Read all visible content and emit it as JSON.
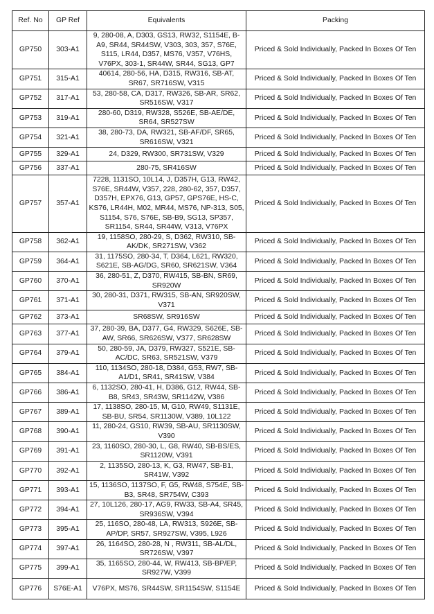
{
  "headers": {
    "ref_no": "Ref. No",
    "gp_ref": "GP Ref",
    "equivalents": "Equivalents",
    "packing": "Packing"
  },
  "rows": [
    {
      "ref": "GP750",
      "gp": "303-A1",
      "eq": "9, 280-08, A, D303, GS13, RW32, S1154E, B-A9, SR44, SR44SW, V303, 303, 357, S76E, S115, LR44, D357, MS76, V357, V76HS, V76PX, 303-1, SR44W, SR44, SG13, GP7",
      "pack": "Priced & Sold Individually, Packed In Boxes Of Ten"
    },
    {
      "ref": "GP751",
      "gp": "315-A1",
      "eq": "40614, 280-56, HA, D315, RW316, SB-AT, SR67, SR716SW, V315",
      "pack": "Priced & Sold Individually, Packed In Boxes Of Ten"
    },
    {
      "ref": "GP752",
      "gp": "317-A1",
      "eq": "53, 280-58, CA, D317, RW326, SB-AR, SR62, SR516SW, V317",
      "pack": "Priced & Sold Individually, Packed In Boxes Of Ten"
    },
    {
      "ref": "GP753",
      "gp": "319-A1",
      "eq": "280-60, D319, RW328, S526E, SB-AE/DE, SR64, SR527SW",
      "pack": "Priced & Sold Individually, Packed In Boxes Of Ten"
    },
    {
      "ref": "GP754",
      "gp": "321-A1",
      "eq": "38, 280-73, DA, RW321, SB-AF/DF, SR65, SR616SW, V321",
      "pack": "Priced & Sold Individually, Packed In Boxes Of Ten"
    },
    {
      "ref": "GP755",
      "gp": "329-A1",
      "eq": "24, D329, RW300, SR731SW, V329",
      "pack": "Priced & Sold Individually, Packed In Boxes Of Ten"
    },
    {
      "ref": "GP756",
      "gp": "337-A1",
      "eq": "280-75, SR416SW",
      "pack": "Priced & Sold Individually, Packed In Boxes Of Ten"
    },
    {
      "ref": "GP757",
      "gp": "357-A1",
      "eq": "7228, 1131SO, 10L14, J, D357H, G13, RW42, S76E, SR44W, V357, 228, 280-62, 357, D357, D357H, EPX76, G13, GP57, GPS76E, HS-C, KS76, LR44H, M02, MR44, MS76, NP-313, S05, S1154, S76, S76E, SB-B9, SG13, SP357, SR1154, SR44, SR44W, V313, V76PX",
      "pack": "Priced & Sold Individually, Packed In Boxes Of Ten"
    },
    {
      "ref": "GP758",
      "gp": "362-A1",
      "eq": "19, 1158SO, 280-29, S, D362, RW310, SB-AK/DK, SR271SW, V362",
      "pack": "Priced & Sold Individually, Packed In Boxes Of Ten"
    },
    {
      "ref": "GP759",
      "gp": "364-A1",
      "eq": "31, 1175SO, 280-34, T, D364, L621, RW320, S621E, SB-AG/DG, SR60, SR621SW, V364",
      "pack": "Priced & Sold Individually, Packed In Boxes Of Ten"
    },
    {
      "ref": "GP760",
      "gp": "370-A1",
      "eq": "36, 280-51, Z, D370, RW415, SB-BN, SR69, SR920W",
      "pack": "Priced & Sold Individually, Packed In Boxes Of Ten"
    },
    {
      "ref": "GP761",
      "gp": "371-A1",
      "eq": "30, 280-31, D371, RW315, SB-AN, SR920SW, V371",
      "pack": "Priced & Sold Individually, Packed In Boxes Of Ten"
    },
    {
      "ref": "GP762",
      "gp": "373-A1",
      "eq": "SR68SW, SR916SW",
      "pack": "Priced & Sold Individually, Packed In Boxes Of Ten"
    },
    {
      "ref": "GP763",
      "gp": "377-A1",
      "eq": "37, 280-39, BA, D377, G4, RW329, S626E, SB-AW, SR66, SR626SW, V377, SR628SW",
      "pack": "Priced & Sold Individually, Packed In Boxes Of Ten"
    },
    {
      "ref": "GP764",
      "gp": "379-A1",
      "eq": "50, 280-59, JA, D379, RW327, S521E, SB-AC/DC, SR63, SR521SW, V379",
      "pack": "Priced & Sold Individually, Packed In Boxes Of Ten"
    },
    {
      "ref": "GP765",
      "gp": "384-A1",
      "eq": "110, 1134SO, 280-18, D384, G53, RW7, SB-A1/D1, SR41, SR41SW, V384",
      "pack": "Priced & Sold Individually, Packed In Boxes Of Ten"
    },
    {
      "ref": "GP766",
      "gp": "386-A1",
      "eq": "6, 1132SO, 280-41, H, D386, G12, RW44, SB-B8, SR43, SR43W, SR1142W, V386",
      "pack": "Priced & Sold Individually, Packed In Boxes Of Ten"
    },
    {
      "ref": "GP767",
      "gp": "389-A1",
      "eq": "17, 1138SO, 280-15, M, G10, RW49, S1131E, SB-BU, SR54, SR1130W, V389, 10L122",
      "pack": "Priced & Sold Individually, Packed In Boxes Of Ten"
    },
    {
      "ref": "GP768",
      "gp": "390-A1",
      "eq": "11, 280-24, GS10, RW39, SB-AU, SR1130SW, V390",
      "pack": "Priced & Sold Individually, Packed In Boxes Of Ten"
    },
    {
      "ref": "GP769",
      "gp": "391-A1",
      "eq": "23, 1160SO, 280-30, L, G8, RW40, SB-BS/ES, SR1120W, V391",
      "pack": "Priced & Sold Individually, Packed In Boxes Of Ten"
    },
    {
      "ref": "GP770",
      "gp": "392-A1",
      "eq": "2, 1135SO, 280-13, K, G3, RW47, SB-B1, SR41W, V392",
      "pack": "Priced & Sold Individually, Packed In Boxes Of Ten"
    },
    {
      "ref": "GP771",
      "gp": "393-A1",
      "eq": "15, 1136SO, 1137SO, F, G5, RW48, S754E, SB-B3, SR48, SR754W, C393",
      "pack": "Priced & Sold Individually, Packed In Boxes Of Ten"
    },
    {
      "ref": "GP772",
      "gp": "394-A1",
      "eq": "27, 10L126, 280-17, AG9, RW33, SB-A4, SR45, SR936SW, V394",
      "pack": "Priced & Sold Individually, Packed In Boxes Of Ten"
    },
    {
      "ref": "GP773",
      "gp": "395-A1",
      "eq": "25, 116SO, 280-48, LA, RW313, S926E, SB-AP/DP, SR57, SR927SW, V395, L926",
      "pack": "Priced & Sold Individually, Packed In Boxes Of Ten"
    },
    {
      "ref": "GP774",
      "gp": "397-A1",
      "eq": "26, 1164SO, 280-28, N , RW311, SB-AL/DL, SR726SW, V397",
      "pack": "Priced & Sold Individually, Packed In Boxes Of Ten"
    },
    {
      "ref": "GP775",
      "gp": "399-A1",
      "eq": "35, 1165SO, 280-44, W, RW413, SB-BP/EP, SR927W, V399",
      "pack": "Priced & Sold Individually, Packed In Boxes Of Ten"
    },
    {
      "ref": "GP776",
      "gp": "S76E-A1",
      "eq": "V76PX, MS76, SR44SW, SR1154SW, S1154E",
      "pack": "Priced & Sold Individually, Packed In Boxes Of Ten"
    }
  ]
}
